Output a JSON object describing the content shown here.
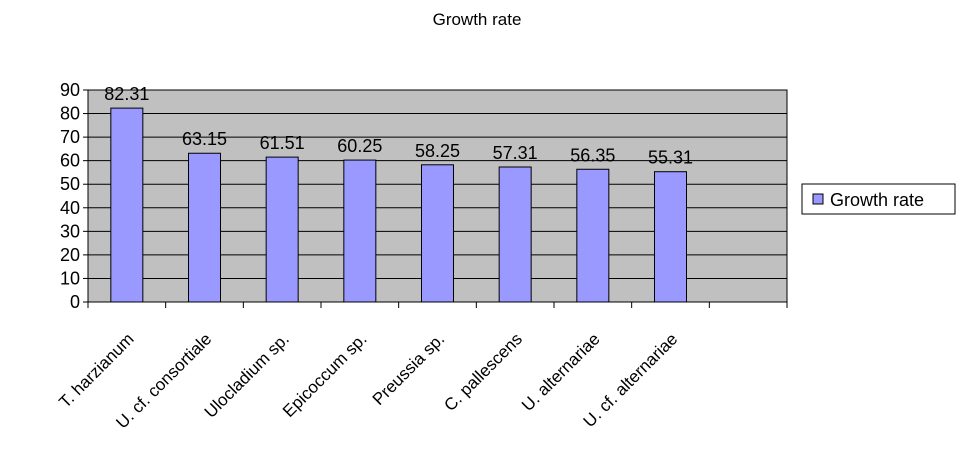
{
  "chart_data": {
    "type": "bar",
    "title": "Growth rate",
    "categories": [
      "T. harzianum",
      "U. cf. consortiale",
      "Ulocladium sp.",
      "Epicoccum sp.",
      "Preussia sp.",
      "C. pallescens",
      "U. alternariae",
      "U. cf. alternariae"
    ],
    "series": [
      {
        "name": "Growth rate",
        "values": [
          82.31,
          63.15,
          61.51,
          60.25,
          58.25,
          57.31,
          56.35,
          55.31
        ]
      }
    ],
    "data_labels": [
      "82.31",
      "63.15",
      "61.51",
      "60.25",
      "58.25",
      "57.31",
      "56.35",
      "55.31"
    ],
    "y_ticks": [
      "0",
      "10",
      "20",
      "30",
      "40",
      "50",
      "60",
      "70",
      "80",
      "90"
    ],
    "ylim": [
      0,
      90
    ],
    "xlabel": "",
    "ylabel": "",
    "grid": true,
    "legend_position": "right",
    "colors": {
      "bar": "#9999ff",
      "plot_background": "#c0c0c0",
      "axis": "#000000"
    }
  }
}
